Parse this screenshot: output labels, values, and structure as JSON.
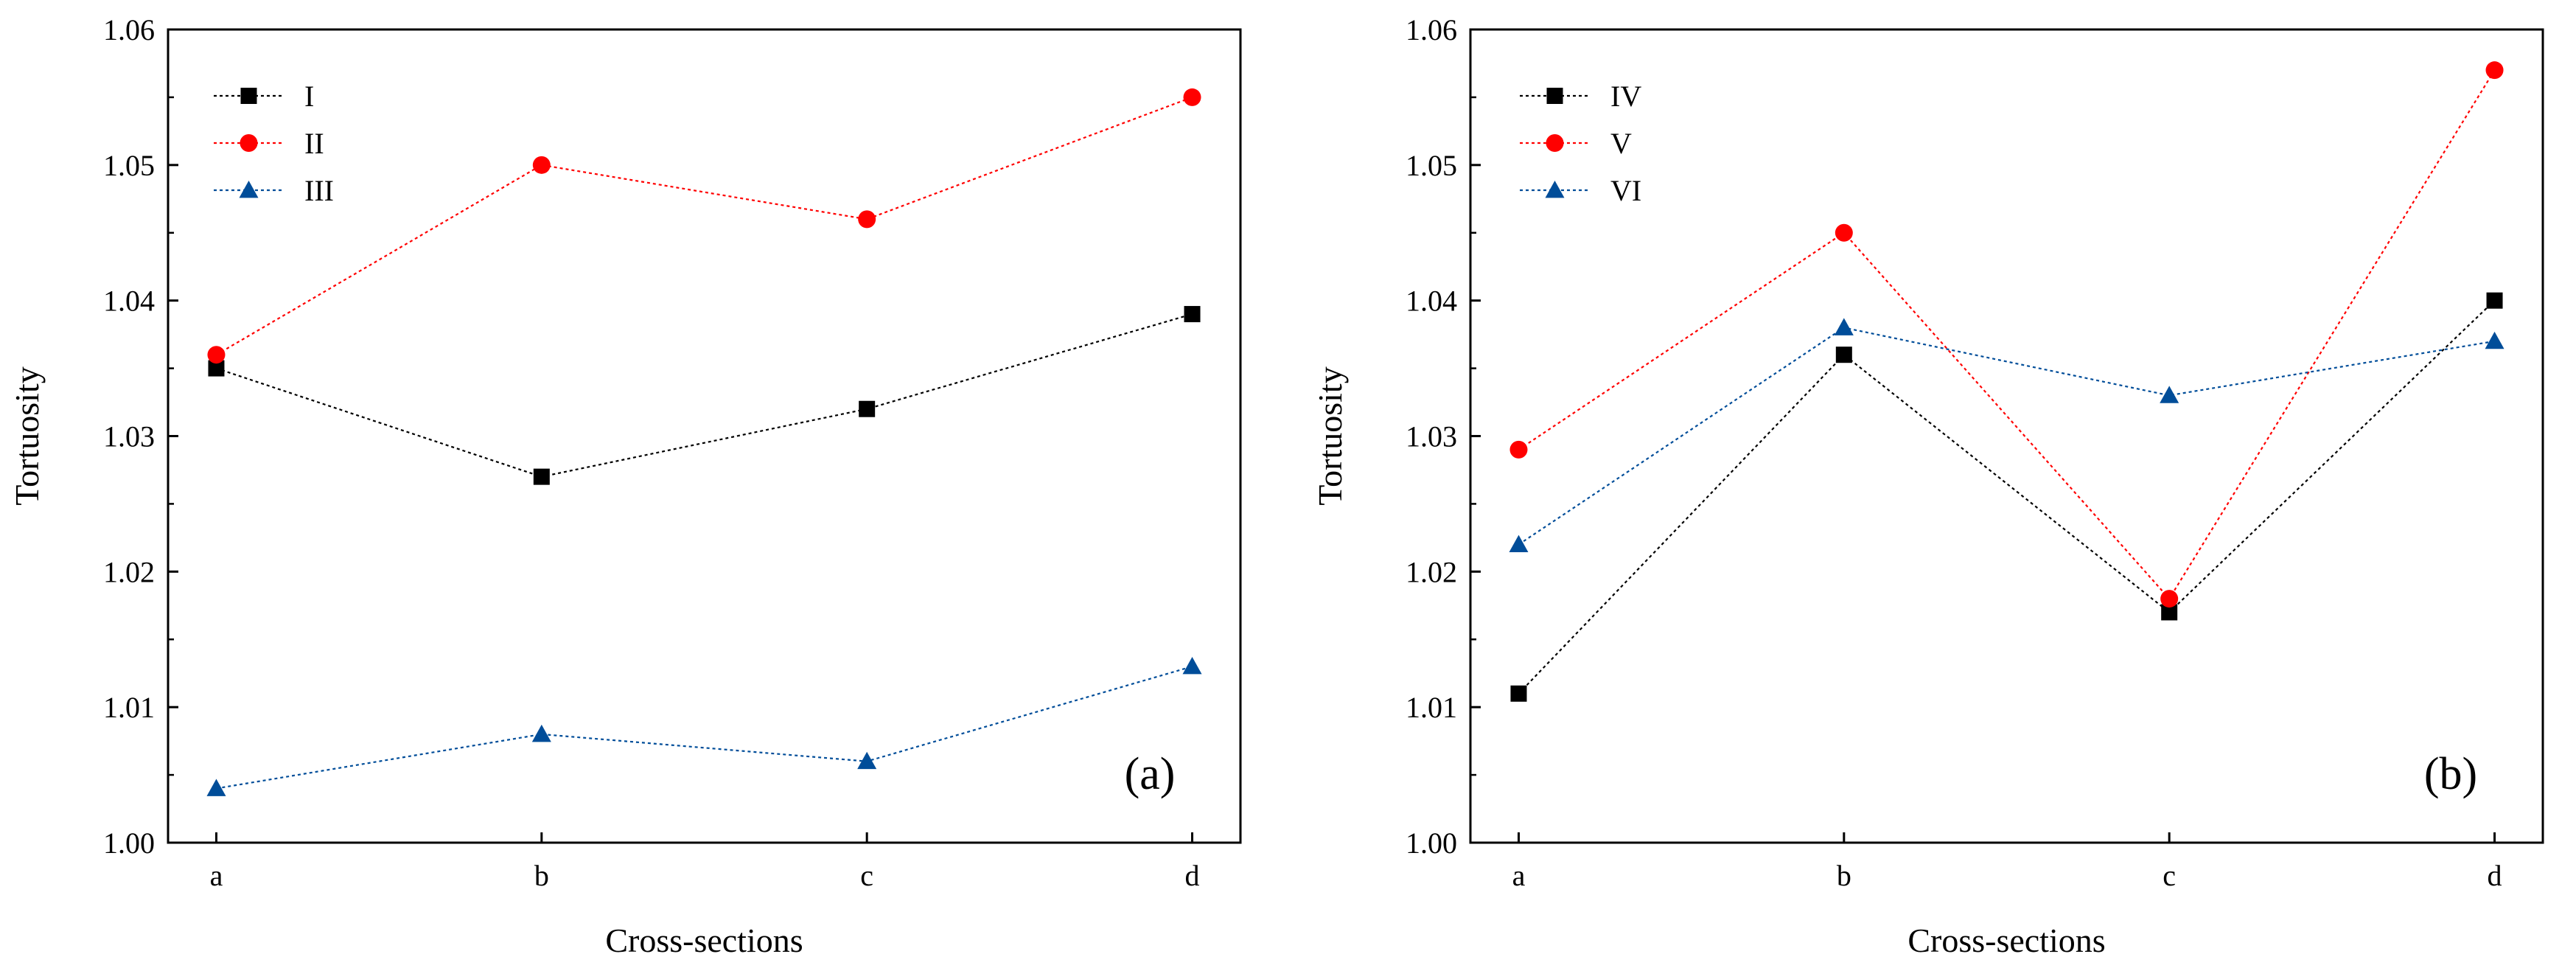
{
  "chart_data": [
    {
      "type": "line",
      "panel_label": "(a)",
      "categories": [
        "a",
        "b",
        "c",
        "d"
      ],
      "xlabel": "Cross-sections",
      "ylabel": "Tortuosity",
      "ylim": [
        1.0,
        1.06
      ],
      "yticks": [
        "1.00",
        "1.01",
        "1.02",
        "1.03",
        "1.04",
        "1.05",
        "1.06"
      ],
      "legend_position": "top-left",
      "series": [
        {
          "name": "I",
          "marker": "square",
          "color": "#000000",
          "values": [
            1.035,
            1.027,
            1.032,
            1.039
          ]
        },
        {
          "name": "II",
          "marker": "circle",
          "color": "#ff0000",
          "values": [
            1.036,
            1.05,
            1.046,
            1.055
          ]
        },
        {
          "name": "III",
          "marker": "triangle",
          "color": "#004d99",
          "values": [
            1.004,
            1.008,
            1.006,
            1.013
          ]
        }
      ]
    },
    {
      "type": "line",
      "panel_label": "(b)",
      "categories": [
        "a",
        "b",
        "c",
        "d"
      ],
      "xlabel": "Cross-sections",
      "ylabel": "Tortuosity",
      "ylim": [
        1.0,
        1.06
      ],
      "yticks": [
        "1.00",
        "1.01",
        "1.02",
        "1.03",
        "1.04",
        "1.05",
        "1.06"
      ],
      "legend_position": "top-left",
      "series": [
        {
          "name": "IV",
          "marker": "square",
          "color": "#000000",
          "values": [
            1.011,
            1.036,
            1.017,
            1.04
          ]
        },
        {
          "name": "V",
          "marker": "circle",
          "color": "#ff0000",
          "values": [
            1.029,
            1.045,
            1.018,
            1.057
          ]
        },
        {
          "name": "VI",
          "marker": "triangle",
          "color": "#004d99",
          "values": [
            1.022,
            1.038,
            1.033,
            1.037
          ]
        }
      ]
    }
  ]
}
